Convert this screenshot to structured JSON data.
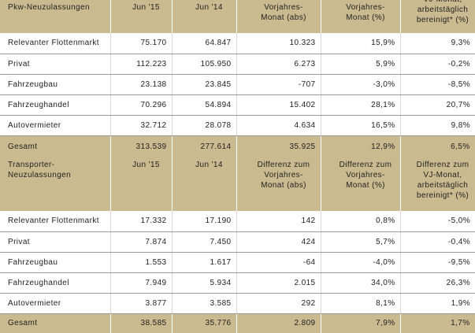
{
  "tables": [
    {
      "header": [
        [
          "Pkw-Neuzulassungen"
        ],
        [
          "Jun '15"
        ],
        [
          "Jun '14"
        ],
        [
          "Vorjahres-",
          "Monat (abs)"
        ],
        [
          "Vorjahres-",
          "Monat (%)"
        ],
        [
          "VJ-Monat,",
          "arbeitstäglich",
          "bereinigt* (%)"
        ]
      ],
      "rows": [
        [
          "Relevanter Flottenmarkt",
          "75.170",
          "64.847",
          "10.323",
          "15,9%",
          "9,3%"
        ],
        [
          "Privat",
          "112.223",
          "105.950",
          "6.273",
          "5,9%",
          "-0,2%"
        ],
        [
          "Fahrzeugbau",
          "23.138",
          "23.845",
          "-707",
          "-3,0%",
          "-8,5%"
        ],
        [
          "Fahrzeughandel",
          "70.296",
          "54.894",
          "15.402",
          "28,1%",
          "20,7%"
        ],
        [
          "Autovermieter",
          "32.712",
          "28.078",
          "4.634",
          "16,5%",
          "9,8%"
        ]
      ],
      "total": [
        "Gesamt",
        "313.539",
        "277.614",
        "35.925",
        "12,9%",
        "6,5%"
      ]
    },
    {
      "header": [
        [
          "Transporter-",
          "Neuzulassungen"
        ],
        [
          "Jun '15"
        ],
        [
          "Jun '14"
        ],
        [
          "Differenz zum",
          "Vorjahres-",
          "Monat (abs)"
        ],
        [
          "Differenz zum",
          "Vorjahres-",
          "Monat (%)"
        ],
        [
          "Differenz zum",
          "VJ-Monat,",
          "arbeitstäglich",
          "bereinigt* (%)"
        ]
      ],
      "rows": [
        [
          "Relevanter Flottenmarkt",
          "17.332",
          "17.190",
          "142",
          "0,8%",
          "-5,0%"
        ],
        [
          "Privat",
          "7.874",
          "7.450",
          "424",
          "5,7%",
          "-0,4%"
        ],
        [
          "Fahrzeugbau",
          "1.553",
          "1.617",
          "-64",
          "-4,0%",
          "-9,5%"
        ],
        [
          "Fahrzeughandel",
          "7.949",
          "5.934",
          "2.015",
          "34,0%",
          "26,3%"
        ],
        [
          "Autovermieter",
          "3.877",
          "3.585",
          "292",
          "8,1%",
          "1,9%"
        ]
      ],
      "total": [
        "Gesamt",
        "38.585",
        "35.776",
        "2.809",
        "7,9%",
        "1,7%"
      ]
    }
  ]
}
